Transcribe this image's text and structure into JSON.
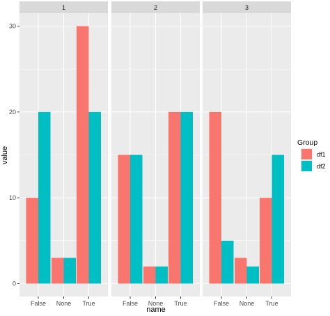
{
  "chart_data": {
    "type": "bar",
    "layout": "faceted grouped bar (dodged), facets side by side sharing y axis",
    "xlabel": "name",
    "ylabel": "value",
    "ylim": [
      -1.5,
      31.5
    ],
    "yticks": [
      0,
      10,
      20,
      30
    ],
    "categories": [
      "False",
      "None",
      "True"
    ],
    "grid": true,
    "colors": {
      "df1": "#F8766D",
      "df2": "#00BFC4",
      "panel_bg": "#EBEBEB",
      "strip_bg": "#D9D9D9"
    },
    "legend": {
      "title": "Group",
      "placement": "right",
      "entries": [
        "df1",
        "df2"
      ]
    },
    "facets": [
      {
        "label": "1",
        "series": [
          {
            "name": "df1",
            "values": [
              10,
              3,
              30
            ]
          },
          {
            "name": "df2",
            "values": [
              20,
              3,
              20
            ]
          }
        ]
      },
      {
        "label": "2",
        "series": [
          {
            "name": "df1",
            "values": [
              15,
              2,
              20
            ]
          },
          {
            "name": "df2",
            "values": [
              15,
              2,
              20
            ]
          }
        ]
      },
      {
        "label": "3",
        "series": [
          {
            "name": "df1",
            "values": [
              20,
              3,
              10
            ]
          },
          {
            "name": "df2",
            "values": [
              5,
              2,
              15
            ]
          }
        ]
      }
    ]
  }
}
